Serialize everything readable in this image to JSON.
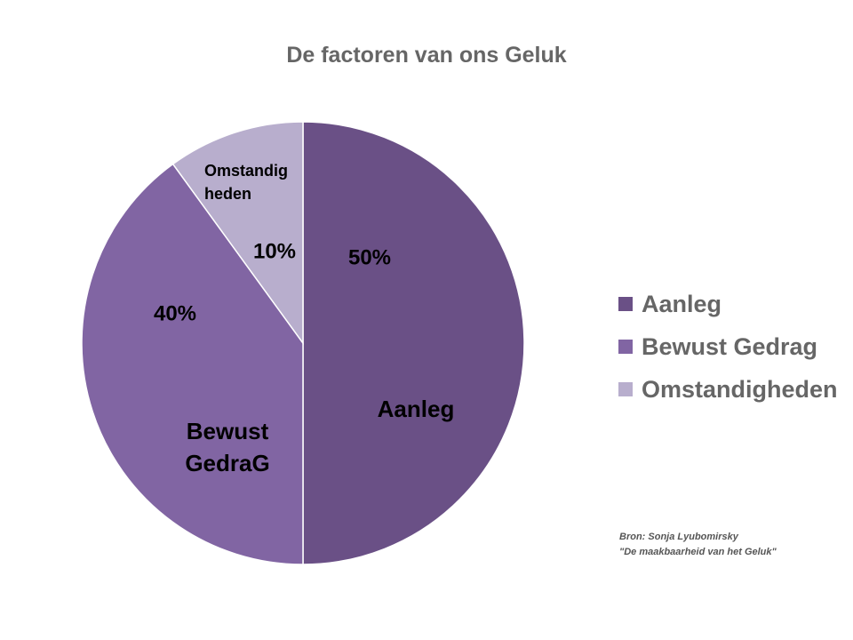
{
  "chart_data": {
    "type": "pie",
    "title": "De factoren van ons Geluk",
    "slices": [
      {
        "name": "Aanleg",
        "value": 50,
        "percent_label": "50%",
        "label_lines": [
          "Aanleg"
        ],
        "color": "#6a5086"
      },
      {
        "name": "Bewust Gedrag",
        "value": 40,
        "percent_label": "40%",
        "label_lines": [
          "Bewust",
          "GedraG"
        ],
        "color": "#8165a3"
      },
      {
        "name": "Omstandigheden",
        "value": 10,
        "percent_label": "10%",
        "label_lines": [
          "Omstandig",
          "heden"
        ],
        "color": "#b8aecd"
      }
    ],
    "legend_position": "right"
  },
  "legend": {
    "items": [
      {
        "label": "Aanleg",
        "color": "#6a5086"
      },
      {
        "label": "Bewust Gedrag",
        "color": "#8165a3"
      },
      {
        "label": "Omstandigheden",
        "color": "#b8aecd"
      }
    ]
  },
  "source": {
    "line1": "Bron: Sonja Lyubomirsky",
    "line2": "\"De maakbaarheid van het Geluk\""
  }
}
